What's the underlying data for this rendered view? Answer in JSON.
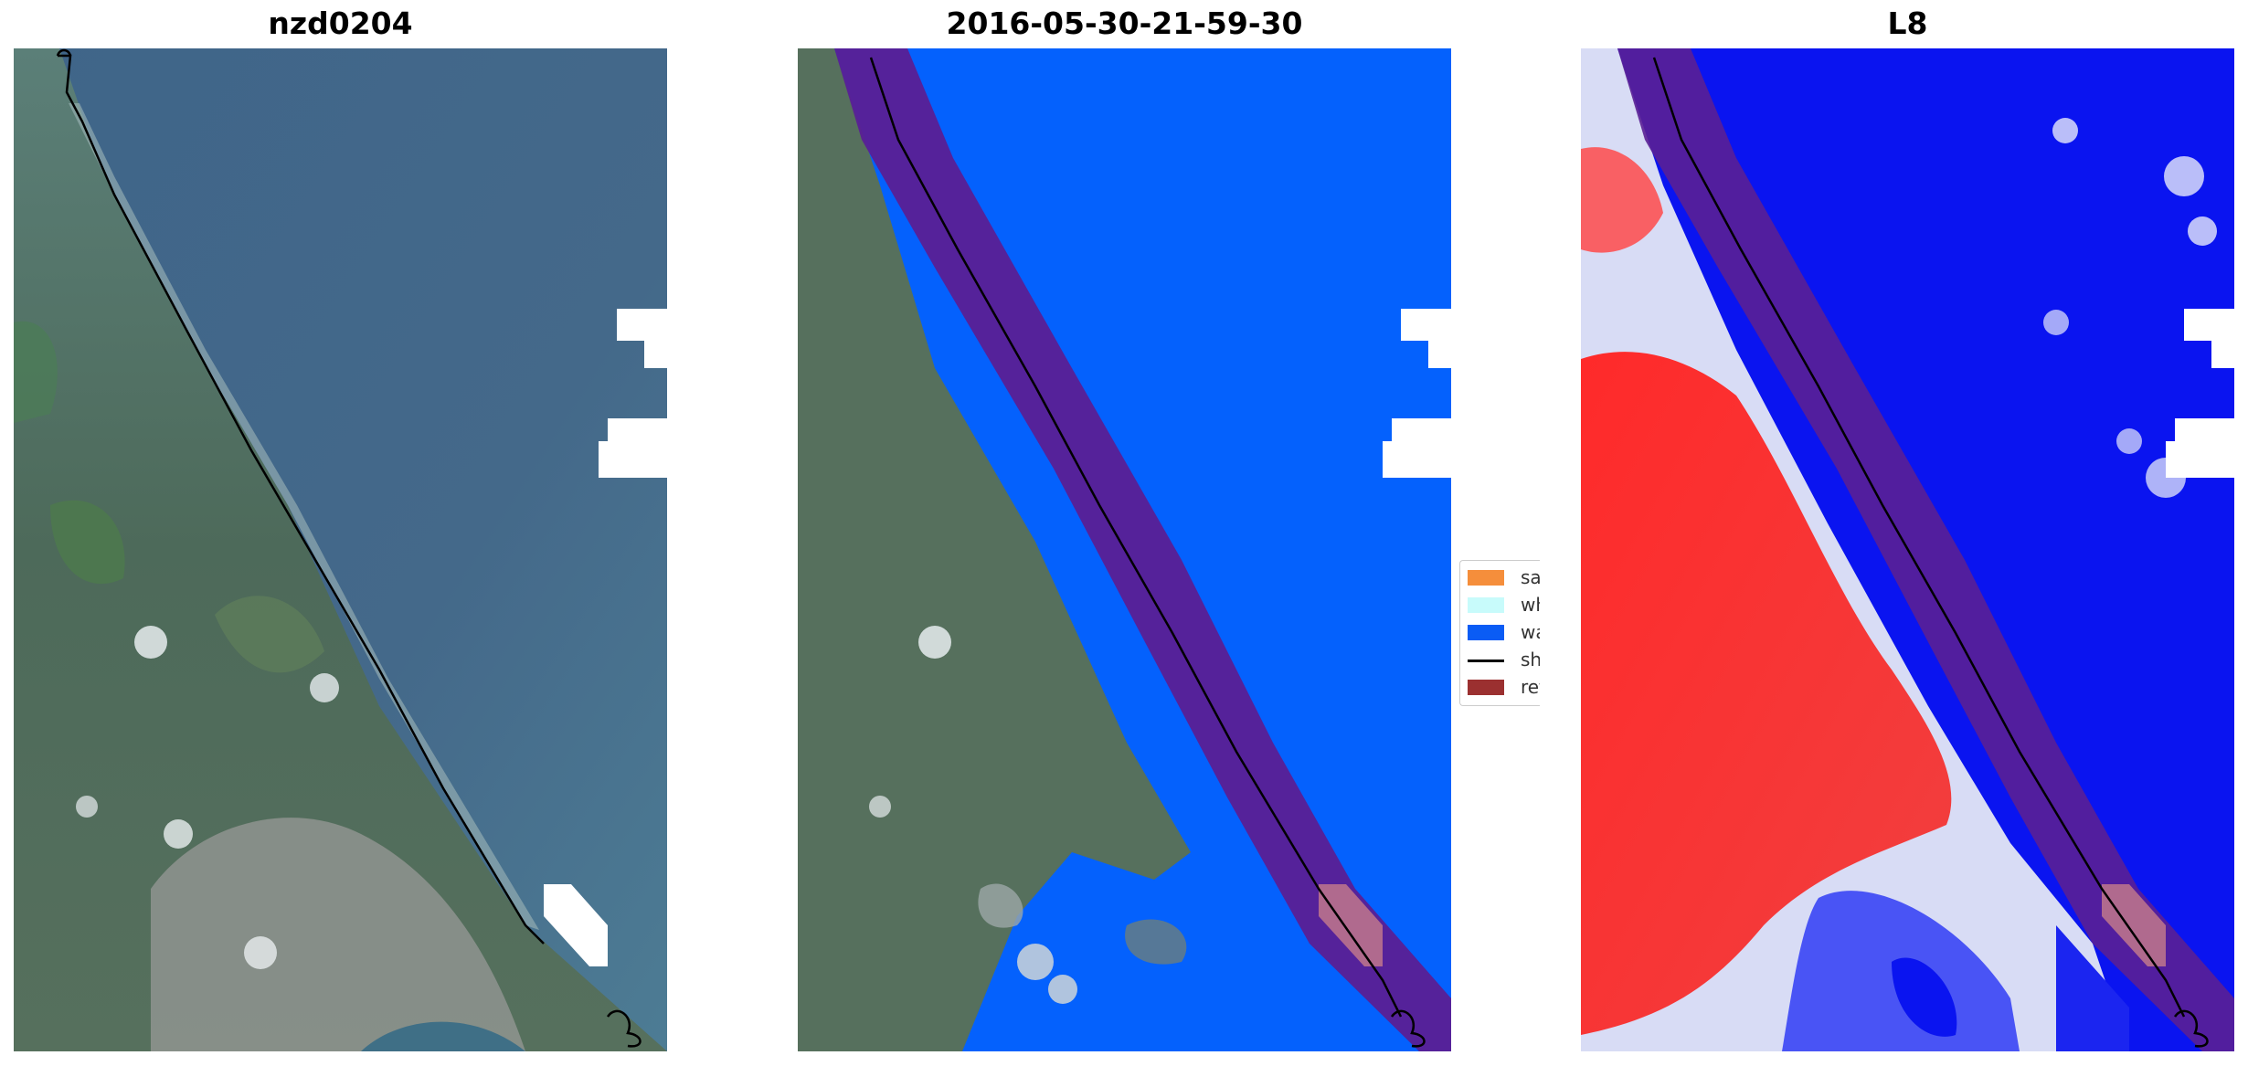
{
  "panels": [
    {
      "title": "nzd0204"
    },
    {
      "title": "2016-05-30-21-59-30"
    },
    {
      "title": "L8"
    }
  ],
  "legend": {
    "items": [
      {
        "label": "sand",
        "color": "#f58e3b",
        "kind": "patch"
      },
      {
        "label": "whitewater",
        "color": "#c8fbfb",
        "kind": "patch"
      },
      {
        "label": "water",
        "color": "#0a5cf5",
        "kind": "patch"
      },
      {
        "label": "shoreline",
        "color": "#000000",
        "kind": "line"
      },
      {
        "label": "reference",
        "color": "#9b3030",
        "kind": "patch"
      }
    ]
  },
  "colors": {
    "water_class": "#0461fd",
    "reference_band": "#5a1f95",
    "index_negative": "#0a14f0",
    "index_positive": "#ff1010",
    "cloud_mask": "#ffffff"
  }
}
